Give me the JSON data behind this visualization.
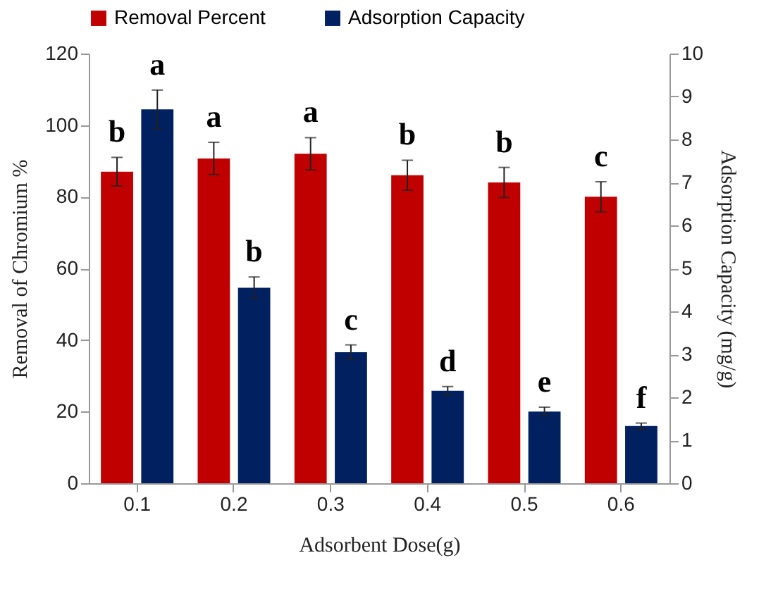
{
  "chart_data": {
    "type": "bar",
    "xlabel": "Adsorbent Dose(g)",
    "ylabel": "Removal of Chromium %",
    "y2label": "Adsorption Capacity (mg/g)",
    "categories": [
      "0.1",
      "0.2",
      "0.3",
      "0.4",
      "0.5",
      "0.6"
    ],
    "series": [
      {
        "name": "Removal Percent",
        "color": "#c00000",
        "values": [
          87,
          90.7,
          92,
          86,
          84,
          80
        ],
        "errors": [
          4,
          4.5,
          4.5,
          4.2,
          4.2,
          4.2
        ],
        "value_labels": [
          "b",
          "a",
          "a",
          "b",
          "b",
          "c"
        ]
      },
      {
        "name": "Adsorption Capacity",
        "color": "#002060",
        "axis": "y2",
        "values": [
          8.7,
          4.55,
          3.05,
          2.15,
          1.67,
          1.33
        ],
        "errors": [
          0.45,
          0.25,
          0.17,
          0.1,
          0.1,
          0.07
        ],
        "value_labels": [
          "a",
          "b",
          "c",
          "d",
          "e",
          "f"
        ]
      }
    ],
    "ylim": [
      0,
      120
    ],
    "yticks": [
      0,
      20,
      40,
      60,
      80,
      100,
      120
    ],
    "y2lim": [
      0,
      10
    ],
    "y2ticks": [
      0,
      1,
      2,
      3,
      4,
      5,
      6,
      7,
      8,
      9,
      10
    ],
    "grid": false,
    "legend": "top"
  }
}
